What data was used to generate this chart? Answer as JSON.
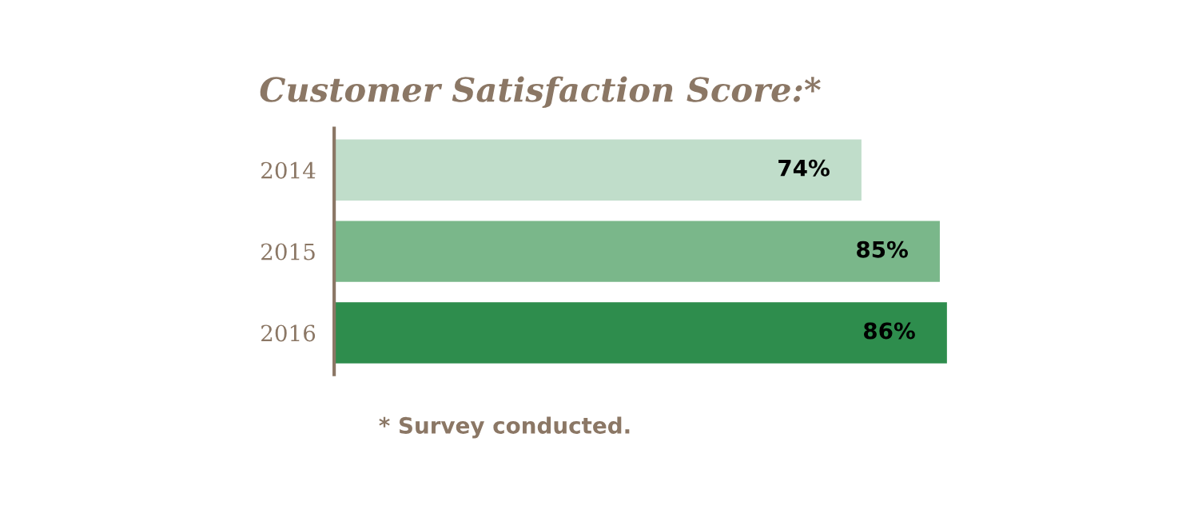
{
  "chart_data": {
    "type": "bar",
    "orientation": "horizontal",
    "title": "Customer Satisfaction Score:*",
    "categories": [
      "2014",
      "2015",
      "2016"
    ],
    "values": [
      74,
      85,
      86
    ],
    "colors": [
      "#c0ddca",
      "#7ab78a",
      "#2e8d4d"
    ],
    "value_labels": [
      "74%",
      "85%",
      "86%"
    ],
    "annotations": [
      "* Survey conducted."
    ],
    "grid": false,
    "legend": false
  }
}
